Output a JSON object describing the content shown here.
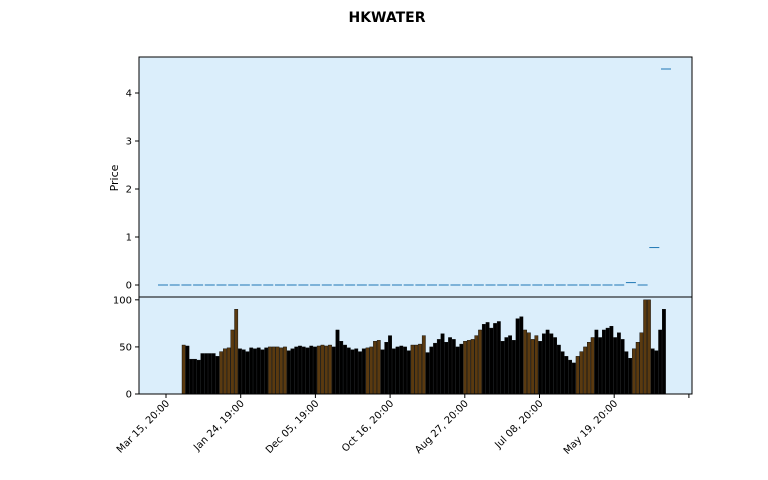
{
  "chart_data": {
    "title": "HKWATER",
    "panels": [
      {
        "type": "line",
        "ylabel": "Price",
        "ylim": [
          -0.25,
          4.75
        ],
        "yticks": [
          "0",
          "1",
          "2",
          "3",
          "4"
        ],
        "background": "#dbeefb",
        "series": [
          {
            "values": [
              0,
              0,
              0,
              0,
              0,
              0,
              0,
              0,
              0,
              0,
              0,
              0,
              0,
              0,
              0,
              0,
              0,
              0,
              0,
              0,
              0,
              0,
              0,
              0,
              0,
              0,
              0,
              0,
              0,
              0,
              0,
              0,
              0,
              0,
              0,
              0,
              0,
              0,
              0,
              0,
              0.05,
              0,
              0.78,
              4.5
            ],
            "color": "#1f77b4"
          }
        ]
      },
      {
        "type": "bar",
        "ylim": [
          0,
          103
        ],
        "yticks": [
          "0",
          "50",
          "100"
        ],
        "background": "#dbeefb",
        "bar_colors": [
          "#000000",
          "#5a3a10"
        ]
      }
    ],
    "x_tick_labels": [
      "Mar 15, 20:00",
      "Jan 24, 19:00",
      "Dec 05, 19:00",
      "Oct 16, 20:00",
      "Aug 27, 20:00",
      "Jul 08, 20:00",
      "May 19, 20:00"
    ],
    "volume_bars": [
      {
        "v": 52,
        "c": 1
      },
      {
        "v": 51,
        "c": 0
      },
      {
        "v": 37,
        "c": 0
      },
      {
        "v": 37,
        "c": 0
      },
      {
        "v": 36,
        "c": 0
      },
      {
        "v": 43,
        "c": 0
      },
      {
        "v": 43,
        "c": 0
      },
      {
        "v": 43,
        "c": 0
      },
      {
        "v": 43,
        "c": 0
      },
      {
        "v": 40,
        "c": 0
      },
      {
        "v": 45,
        "c": 1
      },
      {
        "v": 48,
        "c": 1
      },
      {
        "v": 49,
        "c": 1
      },
      {
        "v": 68,
        "c": 1
      },
      {
        "v": 90,
        "c": 1
      },
      {
        "v": 48,
        "c": 0
      },
      {
        "v": 47,
        "c": 0
      },
      {
        "v": 45,
        "c": 0
      },
      {
        "v": 49,
        "c": 0
      },
      {
        "v": 48,
        "c": 0
      },
      {
        "v": 49,
        "c": 0
      },
      {
        "v": 47,
        "c": 0
      },
      {
        "v": 49,
        "c": 0
      },
      {
        "v": 50,
        "c": 1
      },
      {
        "v": 50,
        "c": 1
      },
      {
        "v": 50,
        "c": 1
      },
      {
        "v": 49,
        "c": 1
      },
      {
        "v": 50,
        "c": 1
      },
      {
        "v": 46,
        "c": 0
      },
      {
        "v": 48,
        "c": 0
      },
      {
        "v": 50,
        "c": 0
      },
      {
        "v": 51,
        "c": 0
      },
      {
        "v": 50,
        "c": 0
      },
      {
        "v": 49,
        "c": 0
      },
      {
        "v": 51,
        "c": 0
      },
      {
        "v": 50,
        "c": 0
      },
      {
        "v": 51,
        "c": 1
      },
      {
        "v": 52,
        "c": 1
      },
      {
        "v": 51,
        "c": 1
      },
      {
        "v": 52,
        "c": 1
      },
      {
        "v": 50,
        "c": 0
      },
      {
        "v": 68,
        "c": 0
      },
      {
        "v": 56,
        "c": 0
      },
      {
        "v": 52,
        "c": 0
      },
      {
        "v": 49,
        "c": 0
      },
      {
        "v": 47,
        "c": 0
      },
      {
        "v": 48,
        "c": 0
      },
      {
        "v": 45,
        "c": 0
      },
      {
        "v": 48,
        "c": 0
      },
      {
        "v": 49,
        "c": 1
      },
      {
        "v": 50,
        "c": 1
      },
      {
        "v": 56,
        "c": 1
      },
      {
        "v": 57,
        "c": 1
      },
      {
        "v": 47,
        "c": 0
      },
      {
        "v": 55,
        "c": 0
      },
      {
        "v": 62,
        "c": 0
      },
      {
        "v": 48,
        "c": 0
      },
      {
        "v": 50,
        "c": 0
      },
      {
        "v": 51,
        "c": 0
      },
      {
        "v": 50,
        "c": 0
      },
      {
        "v": 46,
        "c": 0
      },
      {
        "v": 52,
        "c": 1
      },
      {
        "v": 52,
        "c": 1
      },
      {
        "v": 53,
        "c": 1
      },
      {
        "v": 62,
        "c": 1
      },
      {
        "v": 44,
        "c": 0
      },
      {
        "v": 50,
        "c": 0
      },
      {
        "v": 54,
        "c": 0
      },
      {
        "v": 58,
        "c": 0
      },
      {
        "v": 64,
        "c": 0
      },
      {
        "v": 55,
        "c": 0
      },
      {
        "v": 60,
        "c": 0
      },
      {
        "v": 58,
        "c": 0
      },
      {
        "v": 50,
        "c": 0
      },
      {
        "v": 53,
        "c": 0
      },
      {
        "v": 56,
        "c": 1
      },
      {
        "v": 57,
        "c": 1
      },
      {
        "v": 58,
        "c": 1
      },
      {
        "v": 62,
        "c": 1
      },
      {
        "v": 68,
        "c": 1
      },
      {
        "v": 74,
        "c": 0
      },
      {
        "v": 76,
        "c": 0
      },
      {
        "v": 70,
        "c": 0
      },
      {
        "v": 75,
        "c": 0
      },
      {
        "v": 77,
        "c": 0
      },
      {
        "v": 56,
        "c": 0
      },
      {
        "v": 60,
        "c": 0
      },
      {
        "v": 62,
        "c": 0
      },
      {
        "v": 57,
        "c": 0
      },
      {
        "v": 80,
        "c": 0
      },
      {
        "v": 82,
        "c": 0
      },
      {
        "v": 68,
        "c": 1
      },
      {
        "v": 65,
        "c": 1
      },
      {
        "v": 58,
        "c": 1
      },
      {
        "v": 62,
        "c": 1
      },
      {
        "v": 56,
        "c": 0
      },
      {
        "v": 64,
        "c": 0
      },
      {
        "v": 68,
        "c": 0
      },
      {
        "v": 64,
        "c": 0
      },
      {
        "v": 60,
        "c": 0
      },
      {
        "v": 52,
        "c": 0
      },
      {
        "v": 45,
        "c": 0
      },
      {
        "v": 40,
        "c": 0
      },
      {
        "v": 36,
        "c": 0
      },
      {
        "v": 33,
        "c": 0
      },
      {
        "v": 40,
        "c": 1
      },
      {
        "v": 45,
        "c": 1
      },
      {
        "v": 50,
        "c": 1
      },
      {
        "v": 55,
        "c": 1
      },
      {
        "v": 60,
        "c": 1
      },
      {
        "v": 68,
        "c": 0
      },
      {
        "v": 60,
        "c": 0
      },
      {
        "v": 68,
        "c": 0
      },
      {
        "v": 70,
        "c": 0
      },
      {
        "v": 72,
        "c": 0
      },
      {
        "v": 60,
        "c": 0
      },
      {
        "v": 65,
        "c": 0
      },
      {
        "v": 58,
        "c": 0
      },
      {
        "v": 45,
        "c": 0
      },
      {
        "v": 38,
        "c": 0
      },
      {
        "v": 48,
        "c": 1
      },
      {
        "v": 55,
        "c": 1
      },
      {
        "v": 65,
        "c": 1
      },
      {
        "v": 100,
        "c": 1
      },
      {
        "v": 100,
        "c": 1
      },
      {
        "v": 48,
        "c": 0
      },
      {
        "v": 46,
        "c": 0
      },
      {
        "v": 68,
        "c": 0
      },
      {
        "v": 90,
        "c": 0
      }
    ]
  }
}
